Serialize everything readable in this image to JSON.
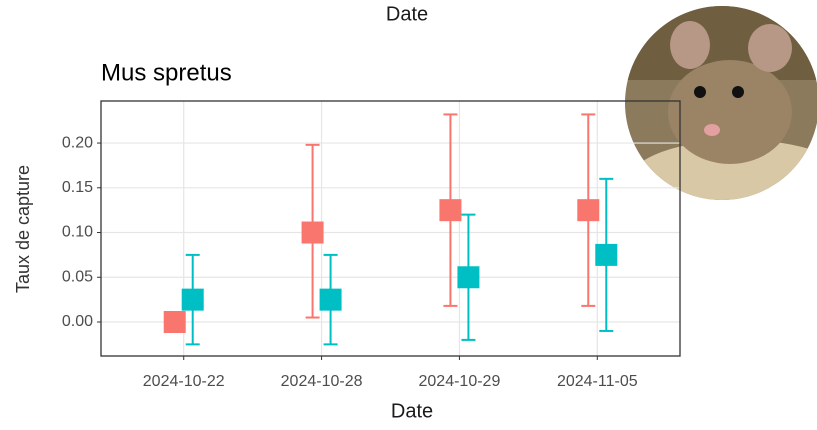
{
  "header_text": "Date",
  "chart_data": {
    "type": "errorbar",
    "title": "Mus spretus",
    "x_label": "Date",
    "y_label": "Taux de capture",
    "categories": [
      "2024-10-22",
      "2024-10-28",
      "2024-10-29",
      "2024-11-05"
    ],
    "series": [
      {
        "color": "#F8766D",
        "values": [
          0,
          0.1,
          0.125,
          0.125
        ],
        "lower": [
          0,
          0.005,
          0.018,
          0.018
        ],
        "upper": [
          0,
          0.198,
          0.232,
          0.232
        ]
      },
      {
        "color": "#00BFC4",
        "values": [
          0.025,
          0.025,
          0.05,
          0.075
        ],
        "lower": [
          -0.025,
          -0.025,
          -0.02,
          -0.01
        ],
        "upper": [
          0.075,
          0.075,
          0.12,
          0.16
        ]
      }
    ],
    "ylim": [
      -0.038,
      0.247
    ],
    "yticks": [
      {
        "value": 0,
        "label": "0.00"
      },
      {
        "value": 0.05,
        "label": "0.05"
      },
      {
        "value": 0.1,
        "label": "0.10"
      },
      {
        "value": 0.15,
        "label": "0.15"
      },
      {
        "value": 0.2,
        "label": "0.20"
      }
    ],
    "grid": true
  }
}
